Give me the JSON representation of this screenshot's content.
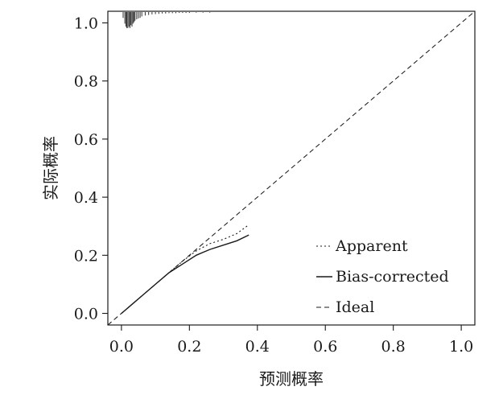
{
  "chart_data": {
    "type": "line",
    "title": "",
    "xlabel": "预测概率",
    "ylabel": "实际概率",
    "xlim": [
      -0.04,
      1.04
    ],
    "ylim": [
      -0.04,
      1.04
    ],
    "x_ticks": [
      "0.0",
      "0.2",
      "0.4",
      "0.6",
      "0.8",
      "1.0"
    ],
    "y_ticks": [
      "0.0",
      "0.2",
      "0.4",
      "0.6",
      "0.8",
      "1.0"
    ],
    "grid": false,
    "legend_position": "bottom-right",
    "series": [
      {
        "name": "Apparent",
        "style": "dotted",
        "x": [
          0.0,
          0.03,
          0.06,
          0.1,
          0.14,
          0.18,
          0.22,
          0.26,
          0.3,
          0.34,
          0.375
        ],
        "y": [
          0.0,
          0.03,
          0.06,
          0.1,
          0.14,
          0.18,
          0.215,
          0.24,
          0.255,
          0.275,
          0.305
        ]
      },
      {
        "name": "Bias-corrected",
        "style": "solid",
        "x": [
          0.0,
          0.03,
          0.06,
          0.1,
          0.14,
          0.18,
          0.22,
          0.26,
          0.3,
          0.34,
          0.375
        ],
        "y": [
          0.0,
          0.03,
          0.06,
          0.1,
          0.14,
          0.17,
          0.2,
          0.22,
          0.235,
          0.25,
          0.27
        ]
      },
      {
        "name": "Ideal",
        "style": "dashed",
        "x": [
          -0.04,
          1.04
        ],
        "y": [
          -0.04,
          1.04
        ]
      }
    ],
    "rug": {
      "x": [
        0.005,
        0.01,
        0.013,
        0.016,
        0.019,
        0.022,
        0.025,
        0.028,
        0.031,
        0.034,
        0.037,
        0.04,
        0.045,
        0.05,
        0.055,
        0.06,
        0.07,
        0.08,
        0.09,
        0.1,
        0.11,
        0.12,
        0.13,
        0.14,
        0.15,
        0.16,
        0.17,
        0.18,
        0.19,
        0.2,
        0.22,
        0.24,
        0.26
      ],
      "length": [
        0.02,
        0.04,
        0.05,
        0.055,
        0.055,
        0.05,
        0.055,
        0.045,
        0.05,
        0.04,
        0.035,
        0.03,
        0.025,
        0.022,
        0.02,
        0.015,
        0.012,
        0.01,
        0.008,
        0.007,
        0.006,
        0.005,
        0.005,
        0.004,
        0.004,
        0.004,
        0.003,
        0.003,
        0.003,
        0.003,
        0.002,
        0.002,
        0.002
      ]
    }
  }
}
